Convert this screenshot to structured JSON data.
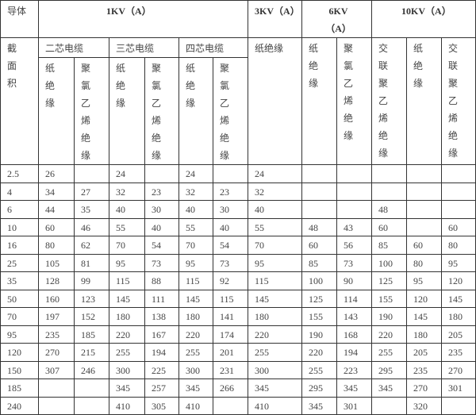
{
  "header": {
    "conductor": "导体",
    "cross_section": "截面积",
    "kv1": "1KV（A）",
    "kv3": "3KV（A）",
    "kv6": "6KV（A）",
    "kv10": "10KV（A）",
    "two_core": "二芯电缆",
    "three_core": "三芯电缆",
    "four_core": "四芯电缆",
    "paper": "纸绝缘",
    "pvc": "聚氯乙烯绝缘",
    "xlpe": "交联聚乙烯绝缘"
  },
  "columns": [
    "截面积",
    "1KV 二芯 纸绝缘",
    "1KV 二芯 聚氯乙烯绝缘",
    "1KV 三芯 纸绝缘",
    "1KV 三芯 聚氯乙烯绝缘",
    "1KV 四芯 纸绝缘",
    "1KV 四芯 聚氯乙烯绝缘",
    "3KV 纸绝缘",
    "6KV 纸绝缘",
    "6KV 聚氯乙烯绝缘",
    "10KV 交联聚乙烯绝缘",
    "10KV 纸绝缘",
    "10KV 交联聚乙烯绝缘"
  ],
  "rows": [
    [
      "2.5",
      "26",
      "",
      "24",
      "",
      "24",
      "",
      "24",
      "",
      "",
      "",
      "",
      ""
    ],
    [
      "4",
      "34",
      "27",
      "32",
      "23",
      "32",
      "23",
      "32",
      "",
      "",
      "",
      "",
      ""
    ],
    [
      "6",
      "44",
      "35",
      "40",
      "30",
      "40",
      "30",
      "40",
      "",
      "",
      "48",
      "",
      ""
    ],
    [
      "10",
      "60",
      "46",
      "55",
      "40",
      "55",
      "40",
      "55",
      "48",
      "43",
      "60",
      "",
      "60"
    ],
    [
      "16",
      "80",
      "62",
      "70",
      "54",
      "70",
      "54",
      "70",
      "60",
      "56",
      "85",
      "60",
      "80"
    ],
    [
      "25",
      "105",
      "81",
      "95",
      "73",
      "95",
      "73",
      "95",
      "85",
      "73",
      "100",
      "80",
      "95"
    ],
    [
      "35",
      "128",
      "99",
      "115",
      "88",
      "115",
      "92",
      "115",
      "100",
      "90",
      "125",
      "95",
      "120"
    ],
    [
      "50",
      "160",
      "123",
      "145",
      "111",
      "145",
      "115",
      "145",
      "125",
      "114",
      "155",
      "120",
      "145"
    ],
    [
      "70",
      "197",
      "152",
      "180",
      "138",
      "180",
      "141",
      "180",
      "155",
      "143",
      "190",
      "145",
      "180"
    ],
    [
      "95",
      "235",
      "185",
      "220",
      "167",
      "220",
      "174",
      "220",
      "190",
      "168",
      "220",
      "180",
      "205"
    ],
    [
      "120",
      "270",
      "215",
      "255",
      "194",
      "255",
      "201",
      "255",
      "220",
      "194",
      "255",
      "205",
      "235"
    ],
    [
      "150",
      "307",
      "246",
      "300",
      "225",
      "300",
      "231",
      "300",
      "255",
      "223",
      "295",
      "235",
      "270"
    ],
    [
      "185",
      "",
      "",
      "345",
      "257",
      "345",
      "266",
      "345",
      "295",
      "345",
      "345",
      "270",
      "301"
    ],
    [
      "240",
      "",
      "",
      "410",
      "305",
      "410",
      "",
      "410",
      "345",
      "301",
      "",
      "320",
      ""
    ]
  ]
}
